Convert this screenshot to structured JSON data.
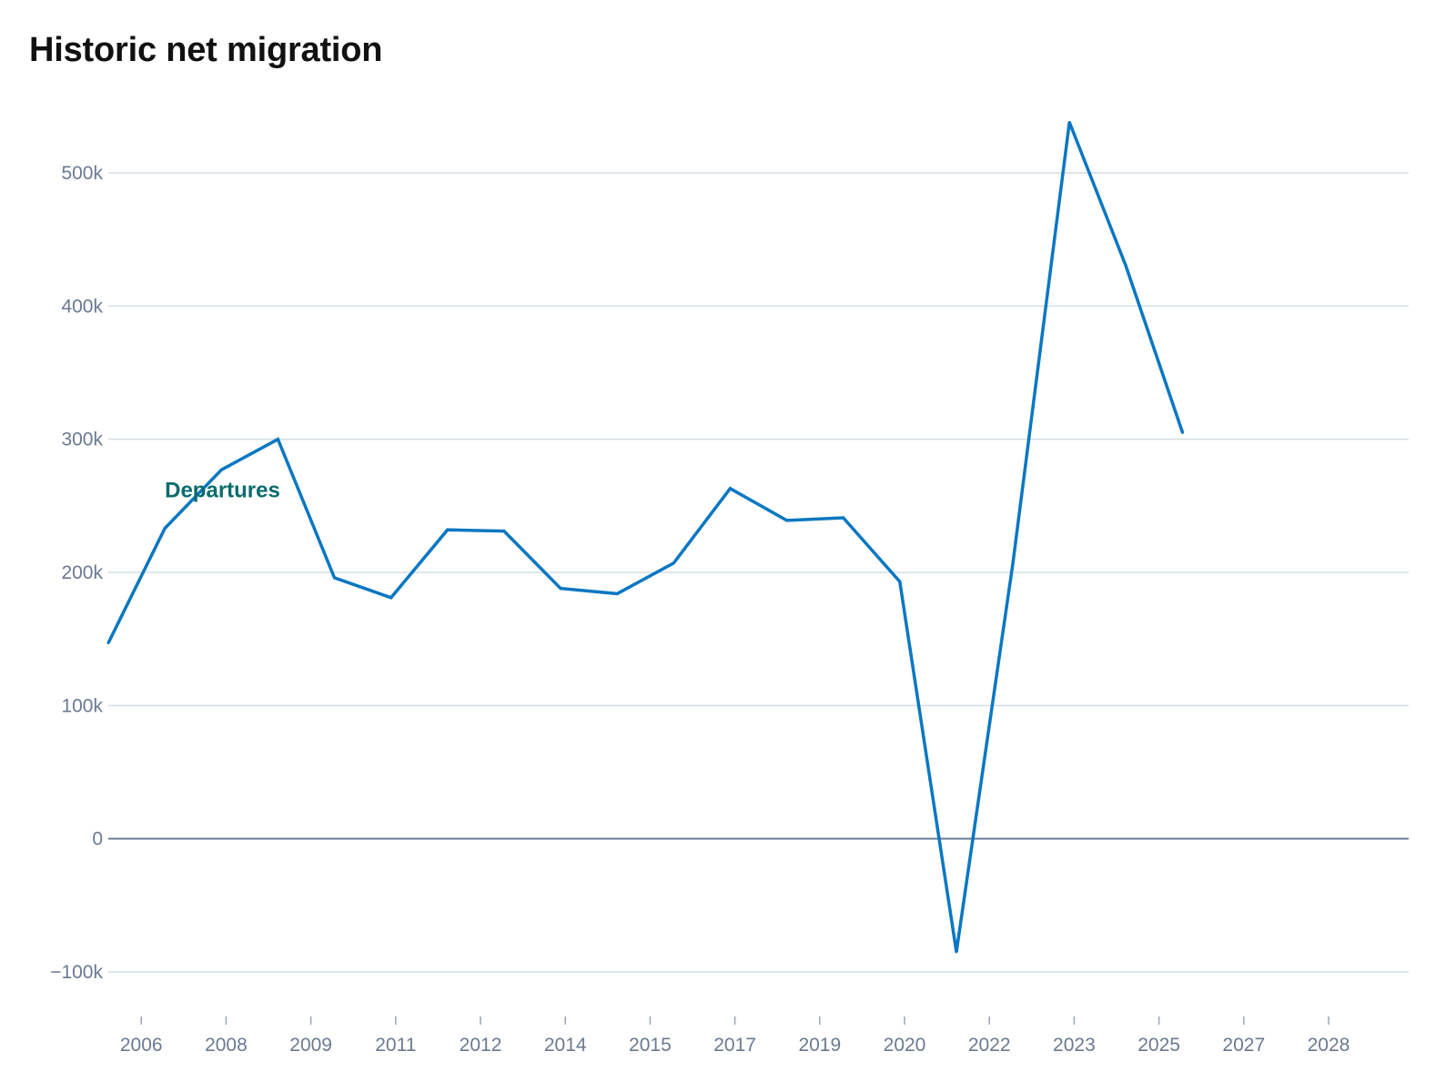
{
  "chart_data": {
    "type": "line",
    "title": "Historic net migration",
    "xlabel": "",
    "ylabel": "",
    "ylim": [
      -100000,
      500000
    ],
    "xlim": [
      "2005-06",
      "2028-06"
    ],
    "y_ticks": [
      -100000,
      0,
      100000,
      200000,
      300000,
      400000,
      500000
    ],
    "y_tick_labels": [
      "−100k",
      "0",
      "100k",
      "200k",
      "300k",
      "400k",
      "500k"
    ],
    "x_tick_labels": [
      "2006",
      "2008",
      "2009",
      "2011",
      "2012",
      "2014",
      "2015",
      "2017",
      "2019",
      "2020",
      "2022",
      "2023",
      "2025",
      "2027",
      "2028"
    ],
    "x_tick_dates": [
      "2006-01",
      "2007-07",
      "2009-01",
      "2010-07",
      "2012-01",
      "2013-07",
      "2015-01",
      "2016-07",
      "2018-01",
      "2019-07",
      "2021-01",
      "2022-07",
      "2024-01",
      "2025-07",
      "2027-01"
    ],
    "grid": true,
    "series": [
      {
        "name": "Departures",
        "color": "#0a77c2",
        "label_color": "#0b6b6b",
        "points": [
          [
            "2005-06",
            147000
          ],
          [
            "2006-06",
            233000
          ],
          [
            "2007-06",
            277000
          ],
          [
            "2008-06",
            300000
          ],
          [
            "2009-06",
            196000
          ],
          [
            "2010-06",
            181000
          ],
          [
            "2011-06",
            232000
          ],
          [
            "2012-06",
            231000
          ],
          [
            "2013-06",
            188000
          ],
          [
            "2014-06",
            184000
          ],
          [
            "2015-06",
            207000
          ],
          [
            "2016-06",
            263000
          ],
          [
            "2017-06",
            239000
          ],
          [
            "2018-06",
            241000
          ],
          [
            "2019-06",
            193000
          ],
          [
            "2020-06",
            -85000
          ],
          [
            "2021-06",
            207000
          ],
          [
            "2022-06",
            538000
          ],
          [
            "2023-06",
            430000
          ],
          [
            "2024-06",
            305000
          ]
        ]
      }
    ]
  }
}
